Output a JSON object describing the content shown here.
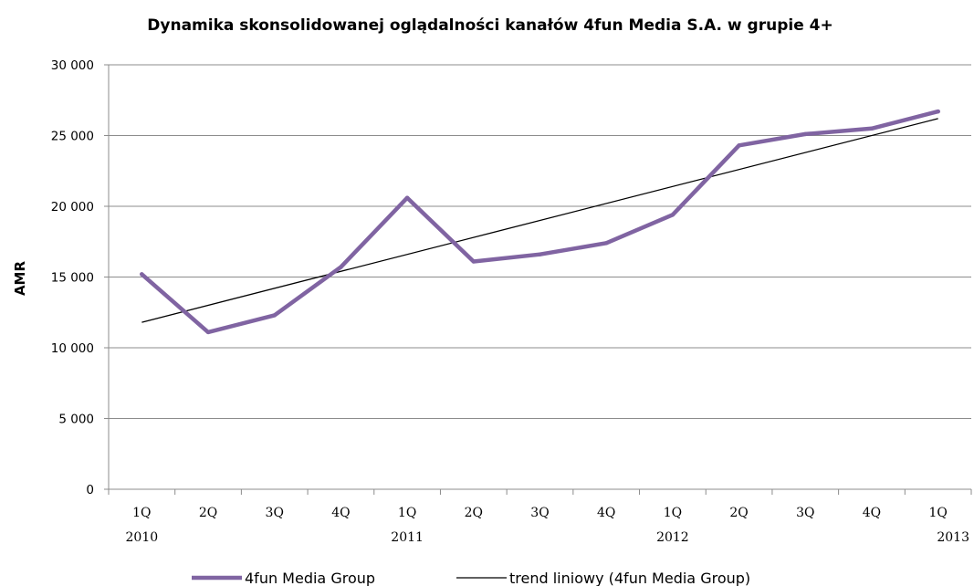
{
  "chart_data": {
    "type": "line",
    "title": "Dynamika skonsolidowanej oglądalności kanałów 4fun Media S.A. w grupie 4+",
    "ylabel": "AMR",
    "ylim": [
      0,
      30000
    ],
    "yticks": [
      0,
      5000,
      10000,
      15000,
      20000,
      25000,
      30000
    ],
    "ytick_labels": [
      "0",
      "5 000",
      "10 000",
      "15 000",
      "20 000",
      "25 000",
      "30 000"
    ],
    "categories": [
      "1Q",
      "2Q",
      "3Q",
      "4Q",
      "1Q",
      "2Q",
      "3Q",
      "4Q",
      "1Q",
      "2Q",
      "3Q",
      "4Q",
      "1Q"
    ],
    "year_labels": [
      "2010",
      "",
      "",
      "",
      "2011",
      "",
      "",
      "",
      "2012",
      "",
      "",
      "",
      "2013"
    ],
    "grid": true,
    "legend_position": "bottom",
    "series": [
      {
        "name": "4fun Media Group",
        "color": "#8064a2",
        "values": [
          15200,
          11100,
          12300,
          15700,
          20600,
          16100,
          16600,
          17400,
          19400,
          24300,
          25100,
          25500,
          26700
        ]
      },
      {
        "name": "trend liniowy (4fun Media Group)",
        "color": "#000000",
        "values": [
          11800,
          13000,
          14200,
          15400,
          16600,
          17800,
          19000,
          20200,
          21400,
          22600,
          23800,
          25000,
          26200
        ]
      }
    ]
  }
}
